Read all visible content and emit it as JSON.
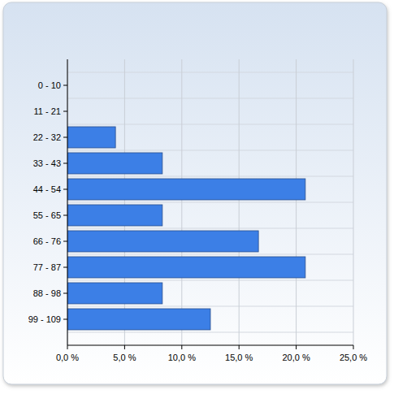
{
  "chart_data": {
    "type": "bar",
    "orientation": "horizontal",
    "categories": [
      "0 - 10",
      "11 - 21",
      "22 - 32",
      "33 - 43",
      "44 - 54",
      "55 - 65",
      "66 - 76",
      "77 - 87",
      "88 - 98",
      "99 - 109"
    ],
    "values": [
      0,
      0,
      4.2,
      8.3,
      20.8,
      8.3,
      16.7,
      20.8,
      8.3,
      12.5
    ],
    "color": "#3c7fe6",
    "xlim": [
      0,
      25
    ],
    "xticks": [
      {
        "value": 0,
        "label": "0,0 %"
      },
      {
        "value": 5,
        "label": "5,0 %"
      },
      {
        "value": 10,
        "label": "10,0 %"
      },
      {
        "value": 15,
        "label": "15,0 %"
      },
      {
        "value": 20,
        "label": "20,0 %"
      },
      {
        "value": 25,
        "label": "25,0 %"
      }
    ],
    "grid": true
  }
}
